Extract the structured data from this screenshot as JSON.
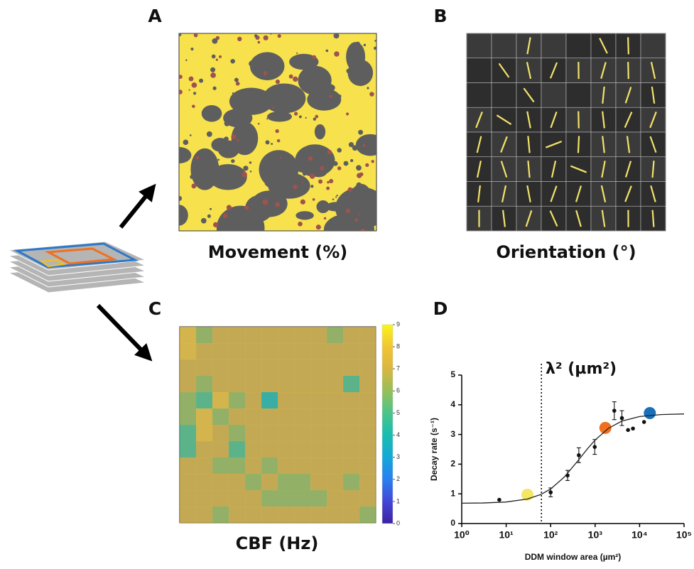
{
  "panels": [
    {
      "label": "A",
      "caption": "Movement (%)"
    },
    {
      "label": "B",
      "caption": "Orientation (°)"
    },
    {
      "label": "C",
      "caption": "CBF (Hz)",
      "heatmap": {
        "values": [
          [
            8,
            6,
            7,
            7,
            7,
            7,
            7,
            7,
            7,
            6,
            7,
            7
          ],
          [
            8,
            7,
            7,
            7,
            7,
            7,
            7,
            7,
            7,
            7,
            7,
            7
          ],
          [
            7,
            7,
            7,
            7,
            7,
            7,
            7,
            7,
            7,
            7,
            7,
            7
          ],
          [
            7,
            6,
            7,
            7,
            7,
            7,
            7,
            7,
            7,
            7,
            5,
            7
          ],
          [
            6,
            5,
            8,
            6,
            7,
            4,
            7,
            7,
            7,
            7,
            7,
            7
          ],
          [
            6,
            8,
            6,
            7,
            7,
            7,
            7,
            7,
            7,
            7,
            7,
            7
          ],
          [
            5,
            8,
            7,
            6,
            7,
            7,
            7,
            7,
            7,
            7,
            7,
            7
          ],
          [
            5,
            7,
            7,
            5,
            7,
            7,
            7,
            7,
            7,
            7,
            7,
            7
          ],
          [
            7,
            7,
            6,
            6,
            7,
            6,
            7,
            7,
            7,
            7,
            7,
            7
          ],
          [
            7,
            7,
            7,
            7,
            6,
            7,
            6,
            6,
            7,
            7,
            6,
            7
          ],
          [
            7,
            7,
            7,
            7,
            7,
            6,
            6,
            6,
            6,
            7,
            7,
            7
          ],
          [
            7,
            7,
            6,
            7,
            7,
            7,
            7,
            7,
            7,
            7,
            7,
            6
          ]
        ],
        "clim": [
          0,
          9
        ],
        "cticks": [
          0,
          1,
          2,
          3,
          4,
          5,
          6,
          7,
          8,
          9
        ],
        "colorscale": [
          "#3b22a0",
          "#4346d8",
          "#2a7ff0",
          "#13a8d8",
          "#19bdb0",
          "#4bc48a",
          "#96bf5a",
          "#d9b640",
          "#f1c534",
          "#f9f51a"
        ]
      }
    },
    {
      "label": "D"
    }
  ],
  "chart_data": {
    "type": "scatter",
    "xlabel": "DDM window area (µm²)",
    "ylabel": "Decay rate (s⁻¹)",
    "annotation": "λ² (µm²)",
    "vline": 62,
    "xlog": true,
    "xlim": [
      1,
      100000
    ],
    "xticks": [
      {
        "value": 1,
        "label": "10⁰"
      },
      {
        "value": 10,
        "label": "10¹"
      },
      {
        "value": 100,
        "label": "10²"
      },
      {
        "value": 1000,
        "label": "10³"
      },
      {
        "value": 10000,
        "label": "10⁴"
      },
      {
        "value": 100000,
        "label": "10⁵"
      }
    ],
    "ylim": [
      0,
      5
    ],
    "yticks": [
      0,
      1,
      2,
      3,
      4,
      5
    ],
    "series": [
      {
        "color": "#111111",
        "x": [
          7,
          100,
          240,
          430,
          980,
          2700,
          4000,
          5500,
          7100,
          12600
        ],
        "values": [
          0.8,
          1.05,
          1.62,
          2.3,
          2.58,
          3.8,
          3.55,
          3.15,
          3.2,
          3.42
        ],
        "errors": [
          null,
          0.15,
          0.17,
          0.25,
          0.25,
          0.3,
          0.25,
          null,
          null,
          null
        ]
      },
      {
        "color": "#f5e663",
        "x": [
          30
        ],
        "values": [
          0.97
        ]
      },
      {
        "color": "#f07020",
        "x": [
          1700
        ],
        "values": [
          3.22
        ]
      },
      {
        "color": "#1a6fba",
        "x": [
          17000
        ],
        "values": [
          3.72
        ]
      },
      {
        "type": "line",
        "color": "#222222",
        "x": [
          1,
          3,
          10,
          30,
          60,
          100,
          200,
          400,
          700,
          1000,
          2000,
          4000,
          10000,
          30000,
          100000
        ],
        "values": [
          0.684,
          0.692,
          0.725,
          0.826,
          0.977,
          1.165,
          1.558,
          2.093,
          2.55,
          2.813,
          3.209,
          3.45,
          3.604,
          3.67,
          3.692
        ]
      }
    ]
  }
}
